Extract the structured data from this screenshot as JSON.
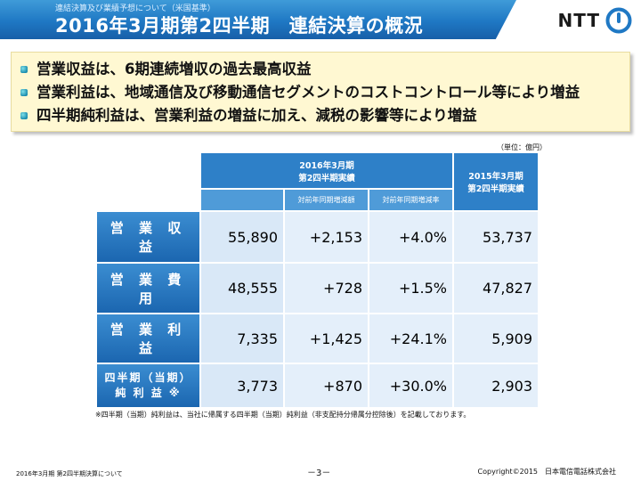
{
  "header": {
    "subtitle": "連結決算及び業績予想について（米国基準）",
    "title": "2016年3月期第2四半期　連結決算の概況"
  },
  "logo": {
    "text": "NTT",
    "icon": "ntt-logo-icon"
  },
  "summary": {
    "bullets": [
      "営業収益は、6期連続増収の過去最高収益",
      "営業利益は、地域通信及び移動通信セグメントのコストコントロール等により増益",
      "四半期純利益は、営業利益の増益に加え、減税の影響等により増益"
    ]
  },
  "table": {
    "unit": "（単位：億円）",
    "header_current": "2016年3月期\n第2四半期実績",
    "header_current_line1": "2016年3月期",
    "header_current_line2": "第2四半期実績",
    "header_prev_line1": "2015年3月期",
    "header_prev_line2": "第2四半期実績",
    "sub_header_diff": "対前年同期増減額",
    "sub_header_rate": "対前年同期増減率",
    "rows": [
      {
        "label": "営 業 収 益",
        "actual": "55,890",
        "diff": "+2,153",
        "rate": "+4.0%",
        "prev": "53,737"
      },
      {
        "label": "営 業 費 用",
        "actual": "48,555",
        "diff": "+728",
        "rate": "+1.5%",
        "prev": "47,827"
      },
      {
        "label": "営 業 利 益",
        "actual": "7,335",
        "diff": "+1,425",
        "rate": "+24.1%",
        "prev": "5,909"
      },
      {
        "label_line1": "四半期（当期）",
        "label_line2": "純 利 益 ※",
        "actual": "3,773",
        "diff": "+870",
        "rate": "+30.0%",
        "prev": "2,903"
      }
    ]
  },
  "footnote": "※四半期（当期）純利益は、当社に帰属する四半期（当期）純利益（非支配持分帰属分控除後）を記載しております。",
  "footer": {
    "left": "2016年3月期 第2四半期決算について",
    "page": "－3－",
    "right": "Copyright©2015　日本電信電話株式会社"
  }
}
